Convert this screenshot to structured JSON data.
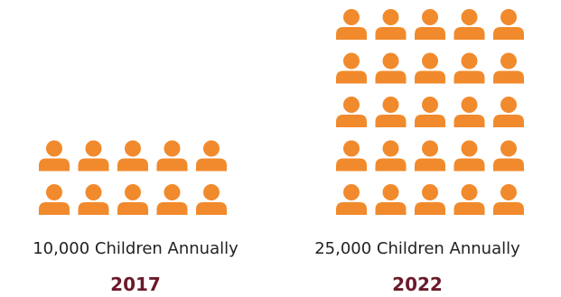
{
  "colors": {
    "icon": "#f18a2c",
    "year_text": "#6b1a2a",
    "caption_text": "#222222"
  },
  "icon_name": "person-icon",
  "chart_data": {
    "type": "pictograph",
    "categories": [
      "2017",
      "2022"
    ],
    "values": [
      10000,
      25000
    ],
    "icon_units": [
      10,
      25
    ],
    "captions": [
      "10,000 Children Annually",
      "25,000 Children Annually"
    ],
    "title": "",
    "xlabel": "",
    "ylabel": ""
  }
}
